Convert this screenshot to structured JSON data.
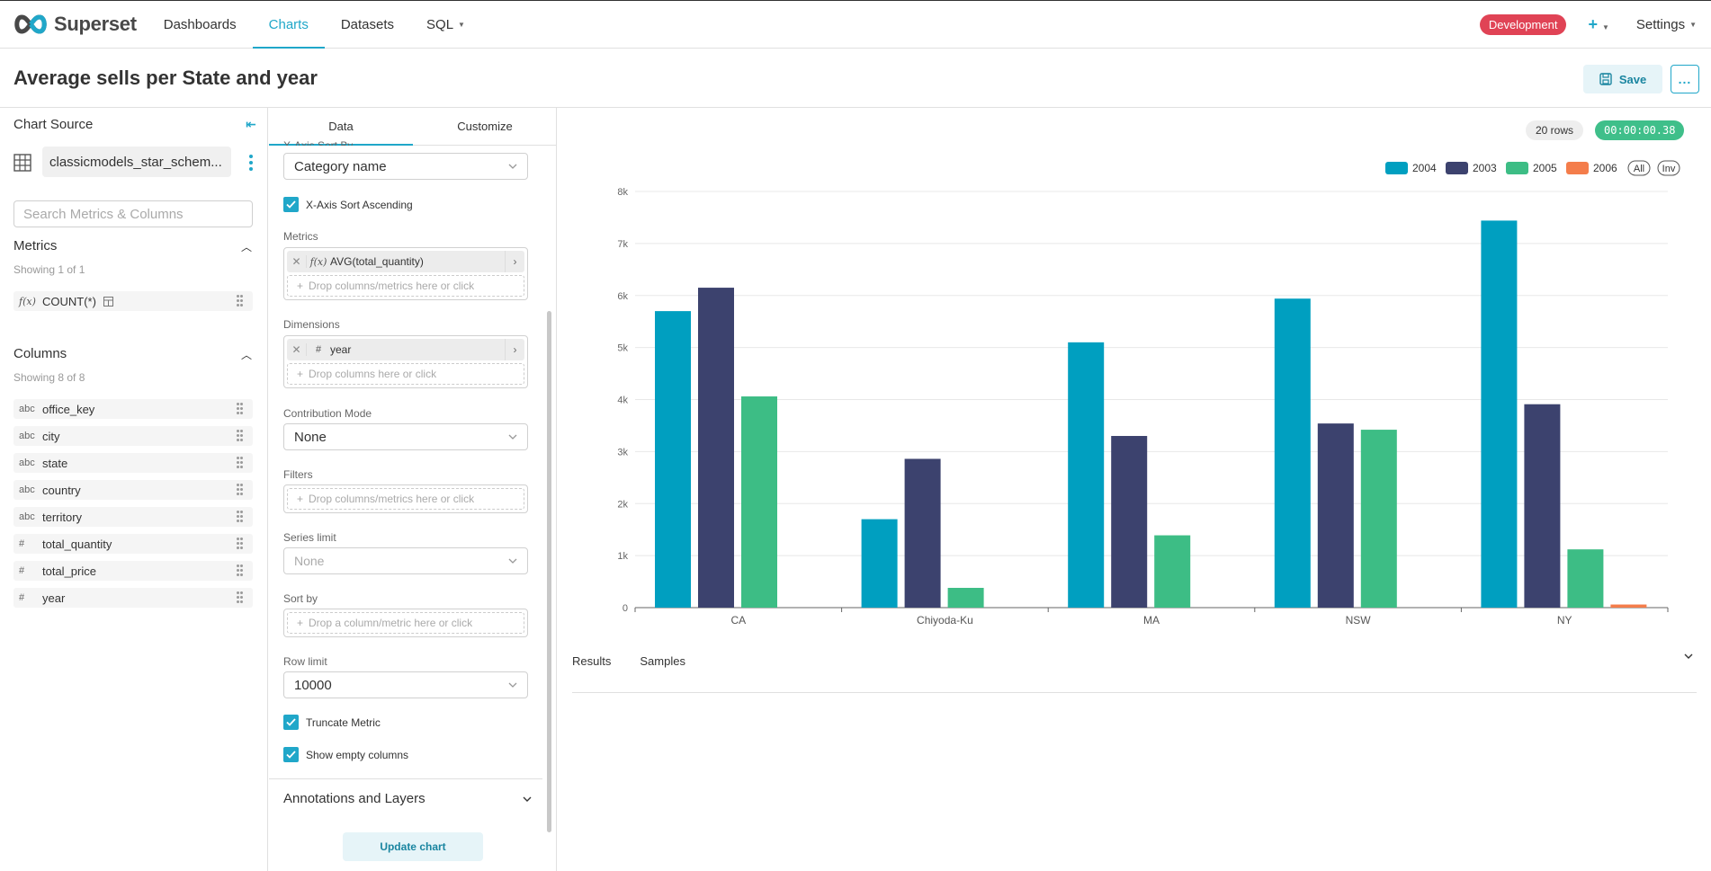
{
  "nav": {
    "brand": "Superset",
    "links": [
      "Dashboards",
      "Charts",
      "Datasets",
      "SQL"
    ],
    "env_badge": "Development",
    "plus": "+",
    "settings": "Settings"
  },
  "header": {
    "title": "Average sells per State and year",
    "save_label": "Save",
    "more_label": "..."
  },
  "left_panel": {
    "title": "Chart Source",
    "dataset": "classicmodels_star_schem...",
    "search_placeholder": "Search Metrics & Columns",
    "metrics_title": "Metrics",
    "metrics_count": "Showing 1 of 1",
    "metrics": [
      {
        "type": "f(x)",
        "name": "COUNT(*)"
      }
    ],
    "columns_title": "Columns",
    "columns_count": "Showing 8 of 8",
    "columns": [
      {
        "type": "abc",
        "name": "office_key"
      },
      {
        "type": "abc",
        "name": "city"
      },
      {
        "type": "abc",
        "name": "state"
      },
      {
        "type": "abc",
        "name": "country"
      },
      {
        "type": "abc",
        "name": "territory"
      },
      {
        "type": "#",
        "name": "total_quantity"
      },
      {
        "type": "#",
        "name": "total_price"
      },
      {
        "type": "#",
        "name": "year"
      }
    ]
  },
  "controls": {
    "tab_data": "Data",
    "tab_customize": "Customize",
    "x_axis_sort_by_label": "X-Axis Sort By",
    "x_axis_sort_by_value": "Category name",
    "x_axis_sort_ascending": "X-Axis Sort Ascending",
    "metrics_label": "Metrics",
    "metric_fx": "f(x)",
    "metric_value": "AVG(total_quantity)",
    "metrics_drop": "Drop columns/metrics here or click",
    "dimensions_label": "Dimensions",
    "dimension_type": "#",
    "dimension_value": "year",
    "dimensions_drop": "Drop columns here or click",
    "contribution_label": "Contribution Mode",
    "contribution_value": "None",
    "filters_label": "Filters",
    "filters_drop": "Drop columns/metrics here or click",
    "series_limit_label": "Series limit",
    "series_limit_value": "None",
    "sort_by_label": "Sort by",
    "sort_by_drop": "Drop a column/metric here or click",
    "row_limit_label": "Row limit",
    "row_limit_value": "10000",
    "truncate_metric": "Truncate Metric",
    "show_empty_columns": "Show empty columns",
    "annotations_label": "Annotations and Layers",
    "update_label": "Update chart"
  },
  "results": {
    "rows": "20 rows",
    "time": "00:00:00.38",
    "tab_results": "Results",
    "tab_samples": "Samples"
  },
  "chart_data": {
    "type": "bar",
    "categories": [
      "CA",
      "Chiyoda-Ku",
      "MA",
      "NSW",
      "NY"
    ],
    "series": [
      {
        "name": "2004",
        "color": "#009fc0",
        "values": [
          5700,
          1700,
          5100,
          5940,
          7440
        ]
      },
      {
        "name": "2003",
        "color": "#3c426e",
        "values": [
          6150,
          2860,
          3300,
          3540,
          3910
        ]
      },
      {
        "name": "2005",
        "color": "#3dbd85",
        "values": [
          4060,
          380,
          1390,
          3420,
          1120
        ]
      },
      {
        "name": "2006",
        "color": "#f47d4b",
        "values": [
          0,
          0,
          0,
          0,
          60
        ]
      }
    ],
    "ylim": [
      0,
      8000
    ],
    "yticks": [
      "0",
      "1k",
      "2k",
      "3k",
      "4k",
      "5k",
      "6k",
      "7k",
      "8k"
    ],
    "legend_extra": [
      "All",
      "Inv"
    ],
    "grid": true,
    "legend_position": "top-right"
  }
}
